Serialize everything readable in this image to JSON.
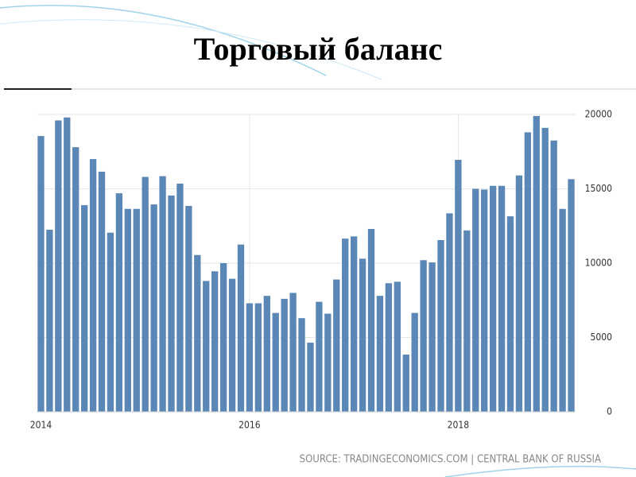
{
  "chart_data": {
    "type": "bar",
    "title": "Торговый баланс",
    "source": "SOURCE: TRADINGECONOMICS.COM | CENTRAL BANK OF RUSSIA",
    "categories": [
      "2014",
      null,
      null,
      null,
      null,
      null,
      null,
      null,
      null,
      null,
      null,
      null,
      null,
      null,
      null,
      null,
      null,
      null,
      null,
      null,
      null,
      null,
      null,
      null,
      "2016",
      null,
      null,
      null,
      null,
      null,
      null,
      null,
      null,
      null,
      null,
      null,
      null,
      null,
      null,
      null,
      null,
      null,
      null,
      null,
      null,
      null,
      null,
      null,
      "2018",
      null,
      null,
      null,
      null,
      null,
      null,
      null,
      null,
      null,
      null,
      null,
      null,
      null
    ],
    "values": [
      18550,
      12250,
      19600,
      19800,
      17800,
      13900,
      17000,
      16150,
      12050,
      14700,
      13650,
      13650,
      15800,
      13950,
      15850,
      14550,
      15350,
      13850,
      10550,
      8800,
      9450,
      10000,
      8950,
      11250,
      7300,
      7300,
      7800,
      6650,
      7600,
      8000,
      6300,
      4650,
      7400,
      6600,
      8900,
      11650,
      11800,
      10300,
      12300,
      7800,
      8650,
      8750,
      3850,
      6650,
      10200,
      10050,
      11550,
      13350,
      16950,
      12200,
      15000,
      14950,
      15200,
      15200,
      13150,
      15900,
      18800,
      19900,
      19100,
      18250,
      13650,
      15650
    ],
    "color": "#5a87b5",
    "ylim": [
      0,
      20000
    ],
    "yticks": [
      0,
      5000,
      10000,
      15000,
      20000
    ],
    "grid": true
  }
}
